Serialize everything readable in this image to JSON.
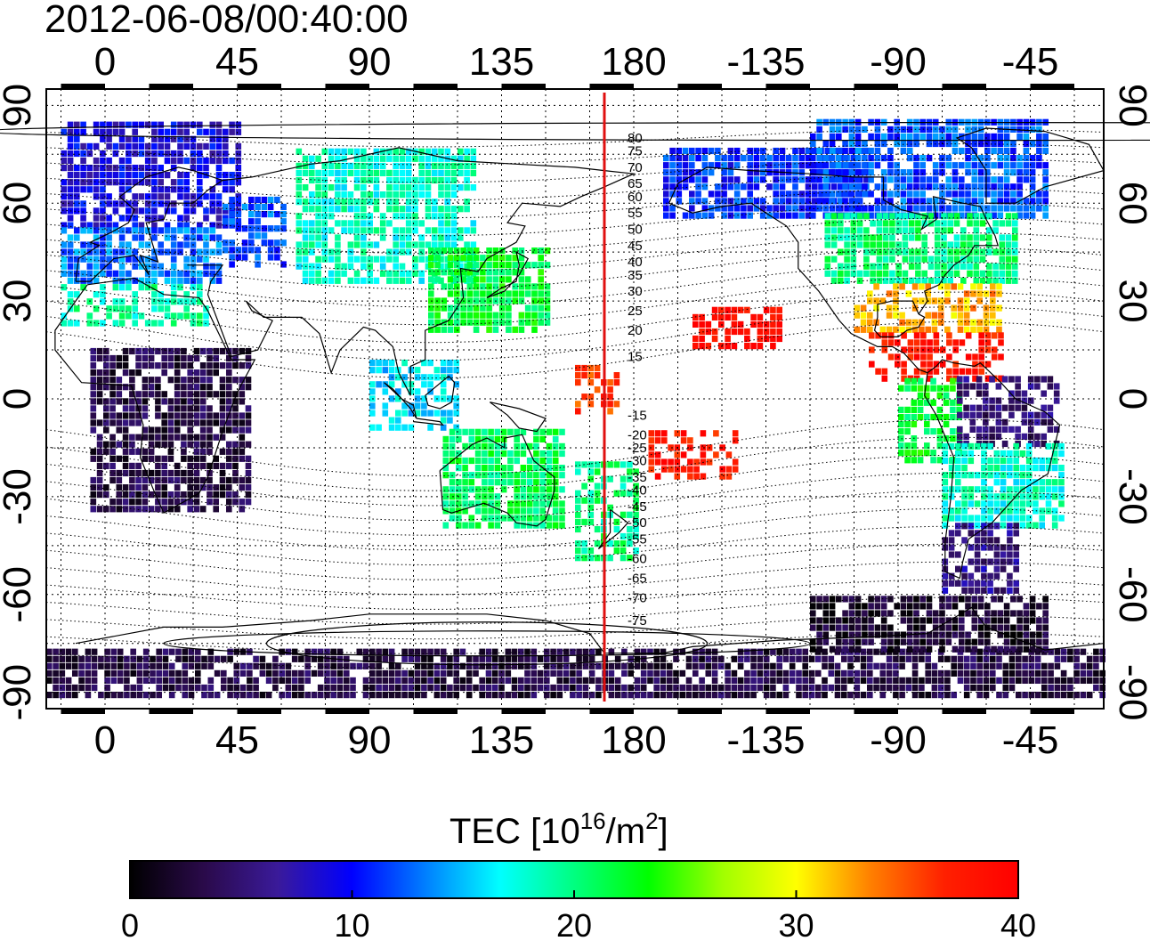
{
  "timestamp": "2012-06-08/00:40:00",
  "map": {
    "lon_top_ticks": [
      "0",
      "45",
      "90",
      "135",
      "180",
      "-135",
      "-90",
      "-45"
    ],
    "lon_bottom_ticks": [
      "0",
      "45",
      "90",
      "135",
      "180",
      "-135",
      "-90",
      "-45"
    ],
    "lat_left_ticks": [
      "90",
      "60",
      "30",
      "0",
      "-30",
      "-60",
      "-90"
    ],
    "lat_right_ticks": [
      "90",
      "60",
      "30",
      "0",
      "-30",
      "-60",
      "-90"
    ],
    "lon_tick_values": [
      0,
      45,
      90,
      135,
      180,
      225,
      270,
      315
    ],
    "lat_tick_values": [
      90,
      60,
      30,
      0,
      -30,
      -60,
      -90
    ],
    "lon_range": [
      -20,
      340
    ],
    "lat_range": [
      -95,
      95
    ],
    "grid": true,
    "meridian_marker_lon": 170,
    "meridian_marker_color": "#e01010",
    "contour_labels": [
      "80",
      "75",
      "70",
      "65",
      "60",
      "55",
      "50",
      "45",
      "40",
      "35",
      "30",
      "25",
      "20",
      "15",
      "-15",
      "-20",
      "-25",
      "-30",
      "-35",
      "-40",
      "-45",
      "-50",
      "-55",
      "-60",
      "-65",
      "-70",
      "-75"
    ],
    "contour_label_lats": [
      80,
      76,
      71,
      66,
      62,
      57,
      52,
      47,
      42,
      38,
      33,
      27,
      21,
      13,
      -5,
      -11,
      -15,
      -19,
      -24,
      -28,
      -33,
      -38,
      -43,
      -49,
      -55,
      -61,
      -68
    ]
  },
  "colorbar": {
    "title_main": "TEC  [10",
    "title_exp": "16",
    "title_mid": "/m",
    "title_exp2": "2",
    "title_end": "]",
    "ticks": [
      "0",
      "10",
      "20",
      "30",
      "40"
    ],
    "tick_values": [
      0,
      10,
      20,
      30,
      40
    ],
    "range": [
      0,
      40
    ],
    "colors": [
      "#000000",
      "#2a0a4a",
      "#3a1a9a",
      "#0000ff",
      "#0080ff",
      "#00ffff",
      "#00ff80",
      "#00ff00",
      "#a0ff00",
      "#ffff00",
      "#ff8000",
      "#ff2000",
      "#ff0000"
    ]
  },
  "tec_regions": [
    {
      "lon": [
        -15,
        45
      ],
      "lat": [
        52,
        84
      ],
      "tec": 9
    },
    {
      "lon": [
        -15,
        40
      ],
      "lat": [
        35,
        52
      ],
      "tec": 13
    },
    {
      "lon": [
        -15,
        35
      ],
      "lat": [
        22,
        35
      ],
      "tec": 19
    },
    {
      "lon": [
        40,
        60
      ],
      "lat": [
        40,
        62
      ],
      "tec": 12
    },
    {
      "lon": [
        65,
        125
      ],
      "lat": [
        35,
        75
      ],
      "tec": 18
    },
    {
      "lon": [
        110,
        150
      ],
      "lat": [
        20,
        45
      ],
      "tec": 22
    },
    {
      "lon": [
        -5,
        50
      ],
      "lat": [
        -35,
        15
      ],
      "tec": 3
    },
    {
      "lon": [
        90,
        120
      ],
      "lat": [
        -10,
        10
      ],
      "tec": 16
    },
    {
      "lon": [
        115,
        155
      ],
      "lat": [
        -40,
        -10
      ],
      "tec": 21
    },
    {
      "lon": [
        160,
        180
      ],
      "lat": [
        -50,
        -20
      ],
      "tec": 20
    },
    {
      "lon": [
        160,
        175
      ],
      "lat": [
        -5,
        10
      ],
      "tec": 36
    },
    {
      "lon": [
        185,
        215
      ],
      "lat": [
        -25,
        -10
      ],
      "tec": 38
    },
    {
      "lon": [
        200,
        230
      ],
      "lat": [
        15,
        28
      ],
      "tec": 39
    },
    {
      "lon": [
        190,
        260
      ],
      "lat": [
        55,
        75
      ],
      "tec": 11
    },
    {
      "lon": [
        240,
        320
      ],
      "lat": [
        55,
        85
      ],
      "tec": 12
    },
    {
      "lon": [
        245,
        310
      ],
      "lat": [
        35,
        55
      ],
      "tec": 20
    },
    {
      "lon": [
        255,
        305
      ],
      "lat": [
        20,
        35
      ],
      "tec": 32
    },
    {
      "lon": [
        260,
        305
      ],
      "lat": [
        5,
        20
      ],
      "tec": 38
    },
    {
      "lon": [
        270,
        290
      ],
      "lat": [
        -20,
        5
      ],
      "tec": 22
    },
    {
      "lon": [
        290,
        325
      ],
      "lat": [
        -15,
        5
      ],
      "tec": 5
    },
    {
      "lon": [
        285,
        325
      ],
      "lat": [
        -40,
        -15
      ],
      "tec": 18
    },
    {
      "lon": [
        285,
        310
      ],
      "lat": [
        -60,
        -40
      ],
      "tec": 6
    },
    {
      "lon": [
        -20,
        340
      ],
      "lat": [
        -92,
        -78
      ],
      "tec": 3
    },
    {
      "lon": [
        240,
        320
      ],
      "lat": [
        -78,
        -62
      ],
      "tec": 2
    }
  ]
}
